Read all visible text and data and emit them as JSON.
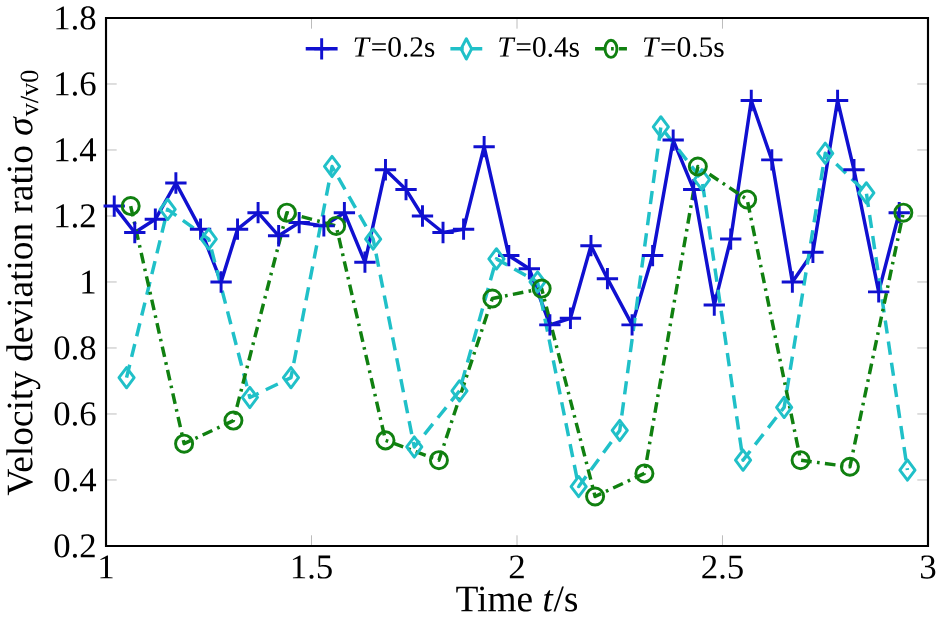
{
  "chart_data": {
    "type": "line",
    "xlabel": "Time *t*/s",
    "ylabel": "Velocity deviation ratio *σ*$_{v/v0}$",
    "xlim": [
      1,
      3
    ],
    "xticks": [
      1,
      1.5,
      2,
      2.5,
      3
    ],
    "ylim": [
      0.2,
      1.8
    ],
    "yticks": [
      0.2,
      0.4,
      0.6,
      0.8,
      1,
      1.2,
      1.4,
      1.6,
      1.8
    ],
    "grid": false,
    "legend": "top",
    "series": [
      {
        "name": "*T*=0.2s",
        "color": "#1010d0",
        "marker": "cross",
        "line_style": "solid",
        "x": [
          1.02,
          1.07,
          1.12,
          1.17,
          1.23,
          1.28,
          1.32,
          1.37,
          1.42,
          1.47,
          1.53,
          1.58,
          1.63,
          1.68,
          1.73,
          1.77,
          1.82,
          1.87,
          1.92,
          1.98,
          2.03,
          2.08,
          2.13,
          2.18,
          2.22,
          2.28,
          2.33,
          2.38,
          2.43,
          2.48,
          2.52,
          2.57,
          2.62,
          2.67,
          2.72,
          2.78,
          2.82,
          2.88,
          2.93
        ],
        "values": [
          1.23,
          1.15,
          1.19,
          1.3,
          1.16,
          1.0,
          1.16,
          1.21,
          1.14,
          1.18,
          1.17,
          1.21,
          1.06,
          1.34,
          1.28,
          1.2,
          1.15,
          1.16,
          1.41,
          1.08,
          1.04,
          0.87,
          0.89,
          1.11,
          1.01,
          0.87,
          1.08,
          1.43,
          1.28,
          0.93,
          1.13,
          1.55,
          1.37,
          1.0,
          1.09,
          1.55,
          1.34,
          0.97,
          1.21
        ]
      },
      {
        "name": "*T*=0.4s",
        "color": "#20c0c8",
        "marker": "diamond",
        "line_style": "dashed",
        "x": [
          1.05,
          1.15,
          1.25,
          1.35,
          1.45,
          1.55,
          1.65,
          1.75,
          1.86,
          1.95,
          2.05,
          2.15,
          2.25,
          2.35,
          2.45,
          2.55,
          2.65,
          2.75,
          2.85,
          2.95
        ],
        "values": [
          0.71,
          1.22,
          1.13,
          0.65,
          0.71,
          1.35,
          1.13,
          0.5,
          0.67,
          1.07,
          1.0,
          0.38,
          0.55,
          1.47,
          1.31,
          0.46,
          0.62,
          1.39,
          1.27,
          0.43
        ]
      },
      {
        "name": "*T*=0.5s",
        "color": "#108010",
        "marker": "circle",
        "line_style": "dashdot",
        "x": [
          1.06,
          1.19,
          1.31,
          1.44,
          1.56,
          1.68,
          1.81,
          1.94,
          2.06,
          2.19,
          2.31,
          2.44,
          2.56,
          2.69,
          2.81,
          2.94
        ],
        "values": [
          1.23,
          0.51,
          0.58,
          1.21,
          1.17,
          0.52,
          0.46,
          0.95,
          0.98,
          0.35,
          0.42,
          1.35,
          1.25,
          0.46,
          0.44,
          1.21
        ]
      }
    ]
  }
}
